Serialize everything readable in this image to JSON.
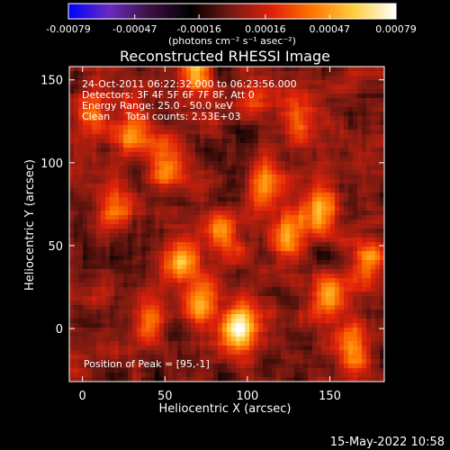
{
  "chart_data": {
    "type": "heatmap",
    "title": "Reconstructed RHESSI Image",
    "xlabel": "Heliocentric X (arcsec)",
    "ylabel": "Heliocentric Y (arcsec)",
    "xlim": [
      -8,
      183
    ],
    "ylim": [
      -32,
      158
    ],
    "xticks": [
      0,
      50,
      100,
      150
    ],
    "yticks": [
      0,
      50,
      100,
      150
    ],
    "colorbar": {
      "min": -0.00079,
      "max": 0.00079,
      "tick_values": [
        -0.00079,
        -0.00047,
        -0.00016,
        0.00016,
        0.00047,
        0.00079
      ],
      "tick_labels": [
        "-0.00079",
        "-0.00047",
        "-0.00016",
        "0.00016",
        "0.00047",
        "0.00079"
      ],
      "unit_label": "(photons cm⁻² s⁻¹ asec⁻²)",
      "colors": [
        "#0000ff",
        "#6a2bbf",
        "#3a1040",
        "#000000",
        "#7a1a12",
        "#e0220a",
        "#ff7a00",
        "#ffd040",
        "#ffffff"
      ]
    },
    "annotations": [
      "24-Oct-2011 06:22:32.000 to 06:23:56.000",
      "Detectors: 3F 4F 5F 6F 7F 8F, Att 0",
      "Energy Range: 25.0 - 50.0 keV",
      "Clean     Total counts: 2.53E+03",
      "Position of Peak = [95,-1]"
    ],
    "peak": [
      95,
      -1
    ],
    "hotspots": [
      {
        "x": 95,
        "y": 0,
        "v": 1.0
      },
      {
        "x": 72,
        "y": 15,
        "v": 0.75
      },
      {
        "x": 60,
        "y": 40,
        "v": 0.7
      },
      {
        "x": 50,
        "y": 100,
        "v": 0.65
      },
      {
        "x": 30,
        "y": 120,
        "v": 0.55
      },
      {
        "x": 5,
        "y": 130,
        "v": 0.5
      },
      {
        "x": 125,
        "y": 55,
        "v": 0.6
      },
      {
        "x": 145,
        "y": 70,
        "v": 0.65
      },
      {
        "x": 150,
        "y": 20,
        "v": 0.6
      },
      {
        "x": 165,
        "y": -10,
        "v": 0.55
      },
      {
        "x": 110,
        "y": 85,
        "v": 0.5
      },
      {
        "x": 20,
        "y": 75,
        "v": 0.5
      },
      {
        "x": 105,
        "y": 140,
        "v": 0.45
      },
      {
        "x": 85,
        "y": 60,
        "v": 0.55
      },
      {
        "x": 40,
        "y": 5,
        "v": 0.45
      },
      {
        "x": 175,
        "y": 40,
        "v": 0.5
      },
      {
        "x": 130,
        "y": 125,
        "v": 0.4
      },
      {
        "x": 70,
        "y": 150,
        "v": 0.45
      }
    ]
  },
  "footer": {
    "timestamp": "15-May-2022 10:58"
  }
}
